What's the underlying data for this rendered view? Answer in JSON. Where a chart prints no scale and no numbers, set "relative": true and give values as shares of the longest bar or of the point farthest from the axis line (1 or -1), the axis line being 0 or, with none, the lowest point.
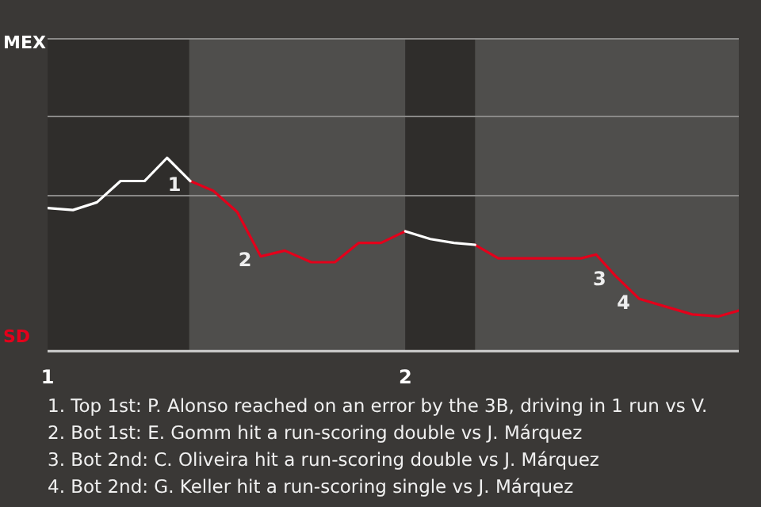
{
  "chart_data": {
    "type": "line",
    "relative": true,
    "xlim": [
      1,
      2.932
    ],
    "xticks": [
      1,
      2
    ],
    "legend": false,
    "ref_lines": [
      {
        "axis": "y",
        "value": 0.81,
        "color": "#8a8988"
      }
    ],
    "marker": "none",
    "line_style": "solid",
    "series": [
      {
        "name": "MEX",
        "color": "#ffffff",
        "x": [
          1,
          1.071,
          1.138,
          1.204,
          1.271,
          1.334,
          1.399,
          1.7,
          2.0,
          2.07,
          2.136,
          2.195
        ],
        "values": [
          0.74,
          0.73,
          0.77,
          0.88,
          0.88,
          1,
          0.88,
          null,
          0.62,
          0.58,
          0.56,
          0.55
        ]
      },
      {
        "name": "SD",
        "color": "#e3001b",
        "x": [
          1.399,
          1.463,
          1.53,
          1.596,
          1.663,
          1.737,
          1.803,
          1.87,
          1.932,
          2.0,
          2.1,
          2.195,
          2.26,
          2.491,
          2.533,
          2.587,
          2.654,
          2.728,
          2.802,
          2.876,
          2.932
        ],
        "values": [
          0.88,
          0.83,
          0.72,
          0.49,
          0.52,
          0.46,
          0.46,
          0.56,
          0.56,
          0.62,
          null,
          0.55,
          0.48,
          0.48,
          0.5,
          0.39,
          0.27,
          0.23,
          0.19,
          0.18,
          0.21
        ]
      }
    ],
    "bands": [
      {
        "axis": "x",
        "from": 1,
        "to": 1.396,
        "color": "#2f2d2b"
      },
      {
        "axis": "x",
        "from": 1.396,
        "to": 2,
        "color": "#4f4e4c"
      },
      {
        "axis": "x",
        "from": 2,
        "to": 2.195,
        "color": "#2f2d2b"
      },
      {
        "axis": "x",
        "from": 2.195,
        "to": 2.932,
        "color": "#4f4e4c"
      }
    ],
    "annotations": [
      {
        "text": "1",
        "x": 1.399,
        "y": 0.88
      },
      {
        "text": "2",
        "x": 1.596,
        "y": 0.49
      },
      {
        "text": "3",
        "x": 2.587,
        "y": 0.39
      },
      {
        "text": "4",
        "x": 2.654,
        "y": 0.27
      },
      "1. Top 1st: P. Alonso reached on an error by the 3B, driving in 1 run vs V.",
      "2. Bot 1st: E. Gomm hit a run-scoring double vs J. Márquez",
      "3. Bot 2nd: C. Oliveira hit a run-scoring double vs J. Márquez",
      "4. Bot 2nd: G. Keller hit a run-scoring single vs J. Márquez"
    ]
  }
}
